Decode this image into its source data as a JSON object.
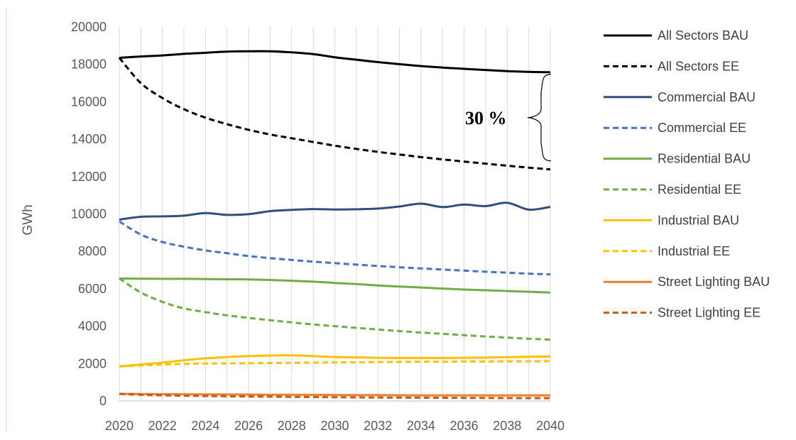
{
  "chart_data": {
    "type": "line",
    "title": "",
    "xlabel": "",
    "ylabel": "GWh",
    "xlim": [
      2020,
      2040
    ],
    "ylim": [
      0,
      20000
    ],
    "x_ticks": [
      "2020",
      "2022",
      "2024",
      "2026",
      "2028",
      "2030",
      "2032",
      "2034",
      "2036",
      "2038",
      "2040"
    ],
    "y_ticks": [
      "0",
      "2000",
      "4000",
      "6000",
      "8000",
      "10000",
      "12000",
      "14000",
      "16000",
      "18000",
      "20000"
    ],
    "grid": "vertical",
    "legend_position": "right",
    "x": [
      2020,
      2021,
      2022,
      2023,
      2024,
      2025,
      2026,
      2027,
      2028,
      2029,
      2030,
      2031,
      2032,
      2033,
      2034,
      2035,
      2036,
      2037,
      2038,
      2039,
      2040
    ],
    "series": [
      {
        "name": "All Sectors BAU",
        "color": "#000000",
        "dash": "solid",
        "values": [
          18350,
          18420,
          18480,
          18560,
          18620,
          18680,
          18700,
          18700,
          18640,
          18550,
          18380,
          18250,
          18120,
          18010,
          17910,
          17830,
          17760,
          17700,
          17640,
          17600,
          17580
        ]
      },
      {
        "name": "All Sectors EE",
        "color": "#000000",
        "dash": "dashed",
        "values": [
          18350,
          17000,
          16200,
          15600,
          15150,
          14800,
          14500,
          14250,
          14050,
          13850,
          13650,
          13480,
          13320,
          13180,
          13040,
          12920,
          12800,
          12690,
          12580,
          12480,
          12380
        ]
      },
      {
        "name": "Commercial BAU",
        "color": "#2f4f7f",
        "dash": "solid",
        "values": [
          9700,
          9850,
          9870,
          9910,
          10050,
          9950,
          9990,
          10150,
          10220,
          10260,
          10240,
          10250,
          10290,
          10400,
          10550,
          10370,
          10500,
          10420,
          10600,
          10230,
          10380
        ]
      },
      {
        "name": "Commercial EE",
        "color": "#4472c4",
        "dash": "dashed",
        "values": [
          9600,
          8900,
          8500,
          8250,
          8050,
          7900,
          7750,
          7640,
          7540,
          7450,
          7370,
          7290,
          7220,
          7150,
          7090,
          7030,
          6970,
          6910,
          6860,
          6810,
          6770
        ]
      },
      {
        "name": "Residential BAU",
        "color": "#70ad47",
        "dash": "solid",
        "values": [
          6550,
          6540,
          6530,
          6530,
          6520,
          6510,
          6500,
          6470,
          6430,
          6380,
          6310,
          6250,
          6180,
          6120,
          6070,
          6010,
          5960,
          5920,
          5880,
          5840,
          5800
        ]
      },
      {
        "name": "Residential EE",
        "color": "#70ad47",
        "dash": "dashed",
        "values": [
          6550,
          5800,
          5300,
          4950,
          4750,
          4580,
          4440,
          4320,
          4200,
          4090,
          4000,
          3910,
          3820,
          3740,
          3660,
          3590,
          3520,
          3450,
          3390,
          3330,
          3280
        ]
      },
      {
        "name": "Industrial BAU",
        "color": "#ffc000",
        "dash": "solid",
        "values": [
          1850,
          1950,
          2050,
          2180,
          2280,
          2350,
          2400,
          2430,
          2440,
          2400,
          2350,
          2330,
          2310,
          2300,
          2300,
          2300,
          2310,
          2320,
          2340,
          2360,
          2380
        ]
      },
      {
        "name": "Industrial EE",
        "color": "#ffc000",
        "dash": "dashed",
        "values": [
          1850,
          1900,
          1950,
          1980,
          2000,
          2010,
          2020,
          2030,
          2040,
          2050,
          2060,
          2070,
          2080,
          2090,
          2100,
          2100,
          2110,
          2110,
          2120,
          2120,
          2130
        ]
      },
      {
        "name": "Street Lighting BAU",
        "color": "#ed7d31",
        "dash": "solid",
        "values": [
          380,
          370,
          360,
          355,
          350,
          345,
          340,
          335,
          330,
          325,
          320,
          315,
          310,
          305,
          300,
          300,
          300,
          300,
          300,
          300,
          300
        ]
      },
      {
        "name": "Street Lighting EE",
        "color": "#c55a11",
        "dash": "dashed",
        "values": [
          380,
          330,
          300,
          280,
          265,
          250,
          240,
          230,
          220,
          210,
          200,
          190,
          185,
          180,
          175,
          170,
          165,
          160,
          155,
          150,
          150
        ]
      }
    ],
    "annotations": [
      {
        "text": "30 %",
        "between_series": [
          "All Sectors BAU",
          "All Sectors EE"
        ],
        "at_x": 2040
      }
    ]
  }
}
